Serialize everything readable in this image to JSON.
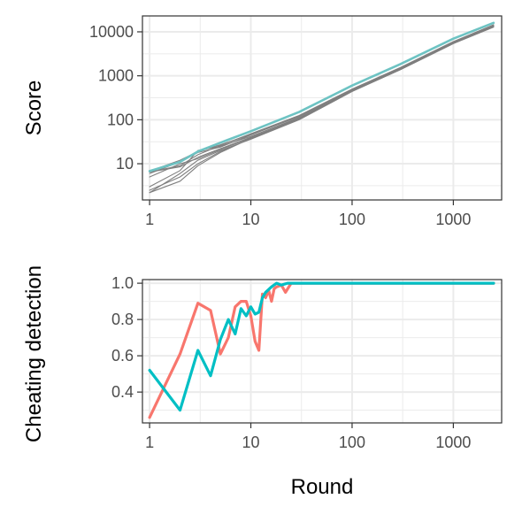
{
  "chart_data": [
    {
      "id": "score",
      "type": "line",
      "ylabel": "Score",
      "xlabel": "",
      "x_scale": "log10",
      "y_scale": "log10",
      "xlim": [
        0.85,
        3000
      ],
      "ylim": [
        1.5,
        23000
      ],
      "x_ticks": [
        1,
        10,
        100,
        1000
      ],
      "x_tick_labels": [
        "1",
        "10",
        "100",
        "1000"
      ],
      "y_ticks": [
        10,
        100,
        1000,
        10000
      ],
      "y_tick_labels": [
        "10",
        "100",
        "1000",
        "10000"
      ],
      "grid": true,
      "series": [
        {
          "color": "#7f7f7f",
          "x": [
            1,
            2,
            3,
            5,
            10,
            30,
            100,
            300,
            1000,
            2500
          ],
          "y": [
            6.5,
            8.5,
            14,
            22,
            40,
            105,
            450,
            1400,
            5500,
            13000
          ]
        },
        {
          "color": "#7f7f7f",
          "x": [
            1,
            2,
            3,
            5,
            10,
            30,
            100,
            300,
            1000,
            2500
          ],
          "y": [
            2.2,
            4,
            9,
            18,
            38,
            110,
            470,
            1450,
            5700,
            13500
          ]
        },
        {
          "color": "#7f7f7f",
          "x": [
            1,
            2,
            3,
            5,
            10,
            30,
            100,
            300,
            1000,
            2500
          ],
          "y": [
            6,
            11,
            18,
            24,
            45,
            120,
            480,
            1500,
            5800,
            14000
          ]
        },
        {
          "color": "#7f7f7f",
          "x": [
            1,
            2,
            3,
            5,
            10,
            30,
            100,
            300,
            1000,
            2500
          ],
          "y": [
            2.2,
            6,
            12,
            20,
            36,
            100,
            440,
            1380,
            5400,
            12800
          ]
        },
        {
          "color": "#7f7f7f",
          "x": [
            1,
            2,
            3,
            5,
            10,
            30,
            100,
            300,
            1000,
            2500
          ],
          "y": [
            6.5,
            9,
            16,
            26,
            48,
            125,
            500,
            1550,
            6000,
            14500
          ]
        },
        {
          "color": "#7f7f7f",
          "x": [
            1,
            2,
            3,
            5,
            10,
            30,
            100,
            300,
            1000,
            2500
          ],
          "y": [
            3,
            7,
            20,
            25,
            42,
            112,
            460,
            1420,
            5600,
            13300
          ]
        },
        {
          "color": "#7f7f7f",
          "x": [
            1,
            2,
            3,
            5,
            10,
            30,
            100,
            300,
            1000,
            2500
          ],
          "y": [
            5,
            10,
            13,
            21,
            39,
            108,
            455,
            1410,
            5500,
            13100
          ]
        },
        {
          "color": "#7f7f7f",
          "x": [
            1,
            2,
            3,
            5,
            10,
            30,
            100,
            300,
            1000,
            2500
          ],
          "y": [
            6.8,
            12,
            19,
            27,
            46,
            118,
            475,
            1480,
            5750,
            13800
          ]
        },
        {
          "color": "#7f7f7f",
          "x": [
            1,
            2,
            3,
            5,
            10,
            30,
            100,
            300,
            1000,
            2500
          ],
          "y": [
            2.5,
            5,
            10,
            19,
            37,
            104,
            445,
            1390,
            5450,
            12900
          ]
        },
        {
          "color": "#6dc3c3",
          "x": [
            1,
            2,
            3,
            5,
            10,
            30,
            100,
            300,
            1000,
            2500
          ],
          "y": [
            6.8,
            11,
            19,
            30,
            55,
            150,
            600,
            1850,
            7000,
            16000
          ]
        }
      ]
    },
    {
      "id": "cheating",
      "type": "line",
      "ylabel": "Cheating detection",
      "xlabel": "Round",
      "x_scale": "log10",
      "y_scale": "linear",
      "xlim": [
        0.85,
        3000
      ],
      "ylim": [
        0.23,
        1.02
      ],
      "x_ticks": [
        1,
        10,
        100,
        1000
      ],
      "x_tick_labels": [
        "1",
        "10",
        "100",
        "1000"
      ],
      "y_ticks": [
        0.4,
        0.6,
        0.8,
        1.0
      ],
      "y_tick_labels": [
        "0.4",
        "0.6",
        "0.8",
        "1.0"
      ],
      "grid": true,
      "series": [
        {
          "color": "#f8766d",
          "x": [
            1,
            2,
            3,
            4,
            5,
            6,
            7,
            8,
            9,
            10,
            11,
            12,
            13,
            14,
            15,
            16,
            17,
            18,
            20,
            22,
            25,
            40,
            2500
          ],
          "y": [
            0.26,
            0.61,
            0.89,
            0.85,
            0.61,
            0.7,
            0.87,
            0.9,
            0.9,
            0.82,
            0.68,
            0.63,
            0.94,
            0.92,
            0.96,
            0.9,
            0.97,
            0.98,
            0.99,
            0.95,
            1.0,
            1.0,
            1.0
          ]
        },
        {
          "color": "#00bfc4",
          "x": [
            1,
            2,
            3,
            4,
            5,
            6,
            7,
            8,
            9,
            10,
            11,
            12,
            13,
            14,
            16,
            18,
            20,
            23,
            25,
            2500
          ],
          "y": [
            0.52,
            0.3,
            0.63,
            0.49,
            0.69,
            0.8,
            0.72,
            0.86,
            0.82,
            0.87,
            0.83,
            0.84,
            0.92,
            0.95,
            0.98,
            1.0,
            0.99,
            1.0,
            1.0,
            1.0
          ]
        }
      ]
    }
  ]
}
